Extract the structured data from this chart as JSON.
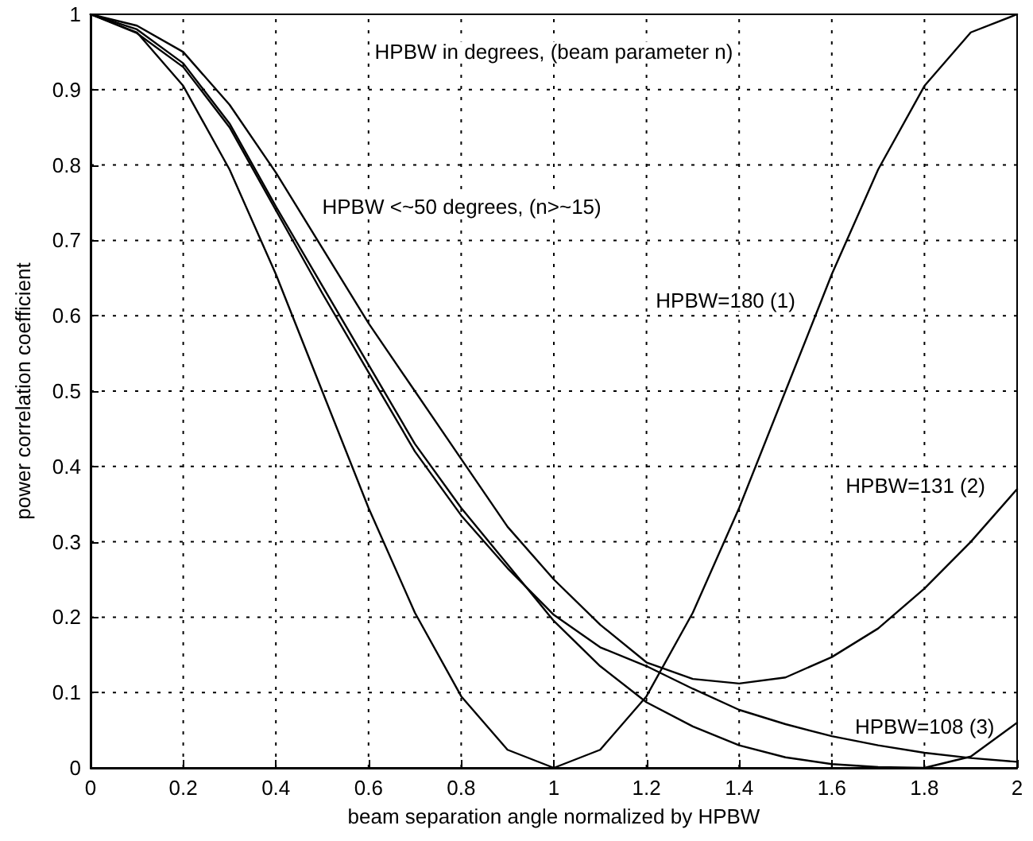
{
  "chart_data": {
    "type": "line",
    "xlabel": "beam separation angle normalized by HPBW",
    "ylabel": "power correlation coefficient",
    "x": [
      0,
      0.1,
      0.2,
      0.3,
      0.4,
      0.5,
      0.6,
      0.7,
      0.8,
      0.9,
      1.0,
      1.1,
      1.2,
      1.3,
      1.4,
      1.5,
      1.6,
      1.7,
      1.8,
      1.9,
      2.0
    ],
    "series": [
      {
        "color": "#000000",
        "values": [
          1,
          0.976,
          0.905,
          0.794,
          0.655,
          0.5,
          0.345,
          0.206,
          0.095,
          0.024,
          0,
          0.024,
          0.095,
          0.206,
          0.345,
          0.5,
          0.655,
          0.794,
          0.905,
          0.976,
          1
        ]
      },
      {
        "color": "#000000",
        "values": [
          1,
          0.985,
          0.95,
          0.88,
          0.79,
          0.69,
          0.59,
          0.5,
          0.41,
          0.32,
          0.25,
          0.19,
          0.14,
          0.118,
          0.112,
          0.12,
          0.147,
          0.185,
          0.238,
          0.3,
          0.37
        ]
      },
      {
        "color": "#000000",
        "values": [
          1,
          0.98,
          0.935,
          0.855,
          0.745,
          0.64,
          0.535,
          0.43,
          0.345,
          0.27,
          0.195,
          0.135,
          0.087,
          0.055,
          0.03,
          0.014,
          0.005,
          0.001,
          0,
          0.015,
          0.06
        ]
      },
      {
        "color": "#000000",
        "values": [
          1,
          0.975,
          0.93,
          0.85,
          0.74,
          0.63,
          0.525,
          0.42,
          0.335,
          0.265,
          0.203,
          0.16,
          0.135,
          0.105,
          0.077,
          0.058,
          0.042,
          0.03,
          0.02,
          0.013,
          0.008
        ]
      }
    ],
    "annotations": [
      "HPBW in degrees, (beam parameter n)",
      "HPBW <~50 degrees, (n>~15)",
      "HPBW=180 (1)",
      "HPBW=131 (2)",
      "HPBW=108 (3)"
    ],
    "xlim": [
      0,
      2
    ],
    "xticks": [
      0,
      0.2,
      0.4,
      0.6,
      0.8,
      1,
      1.2,
      1.4,
      1.6,
      1.8,
      2
    ],
    "ylim": [
      0,
      1
    ],
    "yticks": [
      0,
      0.1,
      0.2,
      0.3,
      0.4,
      0.5,
      0.6,
      0.7,
      0.8,
      0.9,
      1
    ],
    "grid": true,
    "marker": "none",
    "line_style": "solid"
  }
}
